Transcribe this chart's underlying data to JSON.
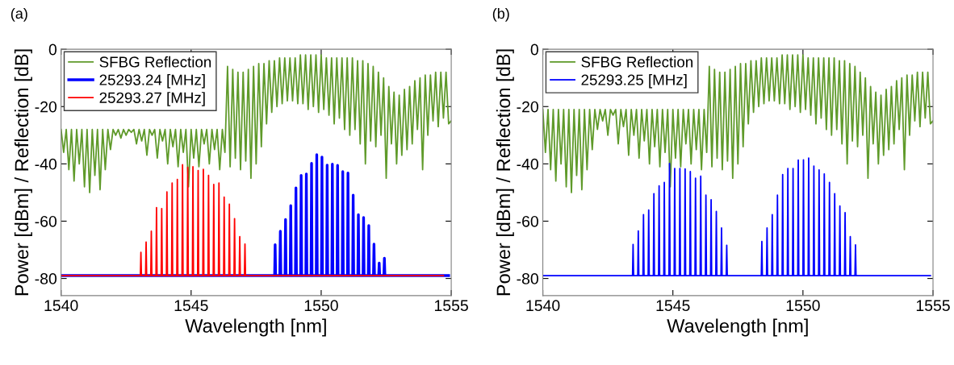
{
  "chart_data": [
    {
      "type": "line",
      "title": "(a)",
      "xlabel": "Wavelength [nm]",
      "ylabel": "Power [dBm] / Reflection [dB]",
      "xlim": [
        1540,
        1555
      ],
      "xticks": [
        1540,
        1545,
        1550,
        1555
      ],
      "ylim": [
        -86,
        0
      ],
      "yticks": [
        -80,
        -60,
        -40,
        -20,
        0
      ],
      "grid": false,
      "legend": "top left",
      "marker": "none",
      "line_style": "solid",
      "series": [
        {
          "name": "SFBG Reflection",
          "color": "#5f9a2a",
          "x": [
            1540.0,
            1540.1,
            1540.2,
            1540.3,
            1540.4,
            1540.5,
            1540.6,
            1540.7,
            1540.8,
            1540.9,
            1541.0,
            1541.1,
            1541.2,
            1541.3,
            1541.4,
            1541.5,
            1541.6,
            1541.7,
            1541.8,
            1541.9,
            1542.0,
            1542.1,
            1542.2,
            1542.3,
            1542.4,
            1542.5,
            1542.6,
            1542.7,
            1542.8,
            1542.9,
            1543.0,
            1543.1,
            1543.2,
            1543.3,
            1543.4,
            1543.5,
            1543.6,
            1543.7,
            1543.8,
            1543.9,
            1544.0,
            1544.1,
            1544.2,
            1544.3,
            1544.4,
            1544.5,
            1544.6,
            1544.7,
            1544.8,
            1544.9,
            1545.0,
            1545.1,
            1545.2,
            1545.3,
            1545.4,
            1545.5,
            1545.6,
            1545.7,
            1545.8,
            1545.9,
            1546.0,
            1546.1,
            1546.2,
            1546.3,
            1546.4,
            1546.5,
            1546.6,
            1546.7,
            1546.8,
            1546.9,
            1547.0,
            1547.1,
            1547.2,
            1547.3,
            1547.4,
            1547.5,
            1547.6,
            1547.7,
            1547.8,
            1547.9,
            1548.0,
            1548.1,
            1548.2,
            1548.3,
            1548.4,
            1548.5,
            1548.6,
            1548.7,
            1548.8,
            1548.9,
            1549.0,
            1549.1,
            1549.2,
            1549.3,
            1549.4,
            1549.5,
            1549.6,
            1549.7,
            1549.8,
            1549.9,
            1550.0,
            1550.1,
            1550.2,
            1550.3,
            1550.4,
            1550.5,
            1550.6,
            1550.7,
            1550.8,
            1550.9,
            1551.0,
            1551.1,
            1551.2,
            1551.3,
            1551.4,
            1551.5,
            1551.6,
            1551.7,
            1551.8,
            1551.9,
            1552.0,
            1552.1,
            1552.2,
            1552.3,
            1552.4,
            1552.5,
            1552.6,
            1552.7,
            1552.8,
            1552.9,
            1553.0,
            1553.1,
            1553.2,
            1553.3,
            1553.4,
            1553.5,
            1553.6,
            1553.7,
            1553.8,
            1553.9,
            1554.0,
            1554.1,
            1554.2,
            1554.3,
            1554.4,
            1554.5,
            1554.6,
            1554.7,
            1554.8,
            1554.9,
            1555.0
          ],
          "values": [
            -28,
            -36,
            -28,
            -42,
            -28,
            -46,
            -28,
            -40,
            -28,
            -48,
            -28,
            -50,
            -28,
            -44,
            -28,
            -49,
            -28,
            -42,
            -28,
            -35,
            -28,
            -30,
            -28,
            -31,
            -28,
            -30,
            -28,
            -29,
            -28,
            -33,
            -28,
            -32,
            -28,
            -37,
            -28,
            -30,
            -28,
            -38,
            -28,
            -32,
            -28,
            -40,
            -28,
            -34,
            -28,
            -41,
            -28,
            -36,
            -28,
            -48,
            -28,
            -38,
            -28,
            -41,
            -28,
            -33,
            -28,
            -40,
            -28,
            -35,
            -28,
            -42,
            -28,
            -36,
            -6,
            -41,
            -7,
            -38,
            -8,
            -42,
            -8,
            -39,
            -7,
            -45,
            -6,
            -40,
            -5,
            -34,
            -5,
            -26,
            -4,
            -22,
            -4,
            -20,
            -3,
            -19,
            -3,
            -18,
            -3,
            -18,
            -3,
            -19,
            -2,
            -19,
            -2,
            -21,
            -2,
            -20,
            -2,
            -22,
            -2,
            -21,
            -3,
            -23,
            -3,
            -26,
            -3,
            -24,
            -3,
            -28,
            -3,
            -30,
            -3,
            -28,
            -4,
            -33,
            -4,
            -40,
            -5,
            -32,
            -6,
            -34,
            -8,
            -30,
            -10,
            -45,
            -13,
            -33,
            -15,
            -40,
            -16,
            -37,
            -14,
            -35,
            -13,
            -33,
            -11,
            -28,
            -10,
            -42,
            -9,
            -30,
            -9,
            -25,
            -8,
            -27,
            -8,
            -24,
            -8,
            -26,
            -25
          ]
        },
        {
          "name": "25293.24 [MHz]",
          "color": "#0000ff",
          "x": [
            1540,
            1548.21,
            1548.23,
            1548.25,
            1548.41,
            1548.43,
            1548.45,
            1548.61,
            1548.63,
            1548.65,
            1548.81,
            1548.83,
            1548.85,
            1549.01,
            1549.03,
            1549.05,
            1549.21,
            1549.23,
            1549.25,
            1549.41,
            1549.43,
            1549.45,
            1549.61,
            1549.63,
            1549.65,
            1549.81,
            1549.83,
            1549.85,
            1550.01,
            1550.03,
            1550.05,
            1550.21,
            1550.23,
            1550.25,
            1550.41,
            1550.43,
            1550.45,
            1550.61,
            1550.63,
            1550.65,
            1550.81,
            1550.83,
            1550.85,
            1551.01,
            1551.03,
            1551.05,
            1551.21,
            1551.23,
            1551.25,
            1551.41,
            1551.43,
            1551.45,
            1551.61,
            1551.63,
            1551.65,
            1551.81,
            1551.83,
            1551.85,
            1552.01,
            1552.03,
            1552.05,
            1552.21,
            1552.23,
            1552.25,
            1552.41,
            1552.43,
            1552.45,
            1554.9
          ],
          "values": [
            -79,
            -79,
            -68.2,
            -79,
            -79,
            -63.5,
            -79,
            -79,
            -59.4,
            -79,
            -79,
            -54.6,
            -79,
            -79,
            -48.4,
            -79,
            -79,
            -44.0,
            -79,
            -79,
            -43.5,
            -79,
            -79,
            -39.8,
            -79,
            -79,
            -36.8,
            -79,
            -79,
            -37.6,
            -79,
            -79,
            -40.4,
            -79,
            -79,
            -40.1,
            -79,
            -79,
            -40.5,
            -79,
            -79,
            -42.7,
            -79,
            -79,
            -43.2,
            -79,
            -79,
            -50.9,
            -79,
            -79,
            -57.7,
            -79,
            -79,
            -58.7,
            -79,
            -79,
            -61.5,
            -79,
            -79,
            -68.0,
            -79,
            -79,
            -74.6,
            -79,
            -79,
            -72.9,
            -79,
            -79
          ]
        },
        {
          "name": "25293.27 [MHz]",
          "color": "#ff0000",
          "x": [
            1540,
            1543.05,
            1543.07,
            1543.09,
            1543.25,
            1543.27,
            1543.29,
            1543.45,
            1543.47,
            1543.49,
            1543.65,
            1543.67,
            1543.69,
            1543.85,
            1543.87,
            1543.89,
            1544.05,
            1544.07,
            1544.09,
            1544.25,
            1544.27,
            1544.29,
            1544.45,
            1544.47,
            1544.49,
            1544.65,
            1544.67,
            1544.69,
            1544.85,
            1544.87,
            1544.89,
            1545.05,
            1545.07,
            1545.09,
            1545.25,
            1545.27,
            1545.29,
            1545.45,
            1545.47,
            1545.49,
            1545.65,
            1545.67,
            1545.69,
            1545.85,
            1545.87,
            1545.89,
            1546.05,
            1546.07,
            1546.09,
            1546.25,
            1546.27,
            1546.29,
            1546.45,
            1546.47,
            1546.49,
            1546.65,
            1546.67,
            1546.69,
            1546.85,
            1546.87,
            1546.89,
            1547.05,
            1547.07,
            1547.09,
            1554.7
          ],
          "values": [
            -79,
            -79,
            -70.9,
            -79,
            -79,
            -67.3,
            -79,
            -79,
            -63.5,
            -79,
            -79,
            -55.3,
            -79,
            -79,
            -55.6,
            -79,
            -79,
            -49.8,
            -79,
            -79,
            -46.7,
            -79,
            -79,
            -45.4,
            -79,
            -79,
            -40.3,
            -79,
            -79,
            -41.2,
            -79,
            -79,
            -41.0,
            -79,
            -79,
            -42.3,
            -79,
            -79,
            -41.9,
            -79,
            -79,
            -44.0,
            -79,
            -79,
            -47.2,
            -79,
            -79,
            -46.7,
            -79,
            -79,
            -51.6,
            -79,
            -79,
            -54.1,
            -79,
            -79,
            -59.1,
            -79,
            -79,
            -65.4,
            -79,
            -79,
            -68.0,
            -79,
            -79
          ]
        }
      ]
    },
    {
      "type": "line",
      "title": "(b)",
      "xlabel": "Wavelength [nm]",
      "ylabel": "Power [dBm] / Reflection [dB]",
      "xlim": [
        1540,
        1555
      ],
      "xticks": [
        1540,
        1545,
        1550,
        1555
      ],
      "ylim": [
        -86,
        0
      ],
      "yticks": [
        -80,
        -60,
        -40,
        -20,
        0
      ],
      "grid": false,
      "legend": "top left",
      "marker": "none",
      "line_style": "solid",
      "series": [
        {
          "name": "SFBG Reflection",
          "color": "#5f9a2a",
          "x": [
            1540.0,
            1540.1,
            1540.2,
            1540.3,
            1540.4,
            1540.5,
            1540.6,
            1540.7,
            1540.8,
            1540.9,
            1541.0,
            1541.1,
            1541.2,
            1541.3,
            1541.4,
            1541.5,
            1541.6,
            1541.7,
            1541.8,
            1541.9,
            1542.0,
            1542.1,
            1542.2,
            1542.3,
            1542.4,
            1542.5,
            1542.6,
            1542.7,
            1542.8,
            1542.9,
            1543.0,
            1543.1,
            1543.2,
            1543.3,
            1543.4,
            1543.5,
            1543.6,
            1543.7,
            1543.8,
            1543.9,
            1544.0,
            1544.1,
            1544.2,
            1544.3,
            1544.4,
            1544.5,
            1544.6,
            1544.7,
            1544.8,
            1544.9,
            1545.0,
            1545.1,
            1545.2,
            1545.3,
            1545.4,
            1545.5,
            1545.6,
            1545.7,
            1545.8,
            1545.9,
            1546.0,
            1546.1,
            1546.2,
            1546.3,
            1546.4,
            1546.5,
            1546.6,
            1546.7,
            1546.8,
            1546.9,
            1547.0,
            1547.1,
            1547.2,
            1547.3,
            1547.4,
            1547.5,
            1547.6,
            1547.7,
            1547.8,
            1547.9,
            1548.0,
            1548.1,
            1548.2,
            1548.3,
            1548.4,
            1548.5,
            1548.6,
            1548.7,
            1548.8,
            1548.9,
            1549.0,
            1549.1,
            1549.2,
            1549.3,
            1549.4,
            1549.5,
            1549.6,
            1549.7,
            1549.8,
            1549.9,
            1550.0,
            1550.1,
            1550.2,
            1550.3,
            1550.4,
            1550.5,
            1550.6,
            1550.7,
            1550.8,
            1550.9,
            1551.0,
            1551.1,
            1551.2,
            1551.3,
            1551.4,
            1551.5,
            1551.6,
            1551.7,
            1551.8,
            1551.9,
            1552.0,
            1552.1,
            1552.2,
            1552.3,
            1552.4,
            1552.5,
            1552.6,
            1552.7,
            1552.8,
            1552.9,
            1553.0,
            1553.1,
            1553.2,
            1553.3,
            1553.4,
            1553.5,
            1553.6,
            1553.7,
            1553.8,
            1553.9,
            1554.0,
            1554.1,
            1554.2,
            1554.3,
            1554.4,
            1554.5,
            1554.6,
            1554.7,
            1554.8,
            1554.9,
            1555.0
          ],
          "values": [
            -21,
            -36,
            -21,
            -42,
            -21,
            -46,
            -21,
            -40,
            -21,
            -48,
            -21,
            -50,
            -21,
            -44,
            -21,
            -49,
            -21,
            -42,
            -21,
            -35,
            -21,
            -28,
            -21,
            -25,
            -21,
            -30,
            -21,
            -23,
            -21,
            -33,
            -21,
            -27,
            -21,
            -37,
            -21,
            -30,
            -21,
            -38,
            -21,
            -32,
            -21,
            -40,
            -21,
            -34,
            -21,
            -41,
            -21,
            -36,
            -21,
            -48,
            -21,
            -38,
            -21,
            -41,
            -21,
            -33,
            -21,
            -40,
            -21,
            -35,
            -21,
            -42,
            -21,
            -36,
            -6,
            -41,
            -7,
            -38,
            -8,
            -42,
            -8,
            -39,
            -7,
            -45,
            -6,
            -40,
            -5,
            -34,
            -5,
            -26,
            -4,
            -22,
            -4,
            -20,
            -3,
            -19,
            -3,
            -18,
            -3,
            -18,
            -3,
            -19,
            -2,
            -19,
            -2,
            -21,
            -2,
            -20,
            -2,
            -22,
            -2,
            -21,
            -3,
            -23,
            -3,
            -26,
            -3,
            -24,
            -3,
            -28,
            -3,
            -30,
            -3,
            -28,
            -4,
            -33,
            -4,
            -40,
            -5,
            -32,
            -6,
            -34,
            -8,
            -30,
            -10,
            -45,
            -13,
            -33,
            -15,
            -40,
            -16,
            -37,
            -14,
            -35,
            -13,
            -33,
            -11,
            -28,
            -10,
            -42,
            -9,
            -30,
            -9,
            -25,
            -8,
            -27,
            -8,
            -24,
            -8,
            -26,
            -25
          ]
        },
        {
          "name": "25293.25 [MHz]",
          "color": "#0000ff",
          "x": [
            1540,
            1543.45,
            1543.47,
            1543.49,
            1543.65,
            1543.67,
            1543.69,
            1543.85,
            1543.87,
            1543.89,
            1544.05,
            1544.07,
            1544.09,
            1544.25,
            1544.27,
            1544.29,
            1544.45,
            1544.47,
            1544.49,
            1544.65,
            1544.67,
            1544.69,
            1544.85,
            1544.87,
            1544.89,
            1545.05,
            1545.07,
            1545.09,
            1545.25,
            1545.27,
            1545.29,
            1545.45,
            1545.47,
            1545.49,
            1545.65,
            1545.67,
            1545.69,
            1545.85,
            1545.87,
            1545.89,
            1546.05,
            1546.07,
            1546.09,
            1546.25,
            1546.27,
            1546.29,
            1546.45,
            1546.47,
            1546.49,
            1546.65,
            1546.67,
            1546.69,
            1546.85,
            1546.87,
            1546.89,
            1547.05,
            1547.07,
            1547.09,
            1548.4,
            1548.42,
            1548.44,
            1548.6,
            1548.62,
            1548.64,
            1548.8,
            1548.82,
            1548.84,
            1549.0,
            1549.02,
            1549.04,
            1549.2,
            1549.22,
            1549.24,
            1549.4,
            1549.42,
            1549.44,
            1549.6,
            1549.62,
            1549.64,
            1549.8,
            1549.82,
            1549.84,
            1550.0,
            1550.02,
            1550.04,
            1550.2,
            1550.22,
            1550.24,
            1550.4,
            1550.42,
            1550.44,
            1550.6,
            1550.62,
            1550.64,
            1550.8,
            1550.82,
            1550.84,
            1551.0,
            1551.02,
            1551.04,
            1551.2,
            1551.22,
            1551.24,
            1551.4,
            1551.42,
            1551.44,
            1551.6,
            1551.62,
            1551.64,
            1551.8,
            1551.82,
            1551.84,
            1552.0,
            1552.02,
            1552.04,
            1554.9
          ],
          "values": [
            -79,
            -79,
            -68.1,
            -79,
            -79,
            -63.4,
            -79,
            -79,
            -57.7,
            -79,
            -79,
            -56.1,
            -79,
            -79,
            -50.4,
            -79,
            -79,
            -47.7,
            -79,
            -79,
            -46.5,
            -79,
            -79,
            -39.9,
            -79,
            -79,
            -41.6,
            -79,
            -79,
            -41.6,
            -79,
            -79,
            -41.8,
            -79,
            -79,
            -42.7,
            -79,
            -79,
            -45.0,
            -79,
            -79,
            -44.3,
            -79,
            -79,
            -50.9,
            -79,
            -79,
            -52.5,
            -79,
            -79,
            -56.6,
            -79,
            -79,
            -62.4,
            -79,
            -79,
            -68.4,
            -79,
            -79,
            -67.1,
            -79,
            -79,
            -62.4,
            -79,
            -79,
            -57.7,
            -79,
            -79,
            -50.9,
            -79,
            -79,
            -43.7,
            -79,
            -79,
            -41.6,
            -79,
            -79,
            -41.6,
            -79,
            -79,
            -38.7,
            -79,
            -79,
            -38.6,
            -79,
            -79,
            -38.0,
            -79,
            -79,
            -40.8,
            -79,
            -79,
            -42.1,
            -79,
            -79,
            -43.5,
            -79,
            -79,
            -46.5,
            -79,
            -79,
            -50.4,
            -79,
            -79,
            -54.7,
            -79,
            -79,
            -57.0,
            -79,
            -79,
            -65.4,
            -79,
            -79,
            -68.3,
            -79,
            -79
          ]
        }
      ]
    }
  ]
}
